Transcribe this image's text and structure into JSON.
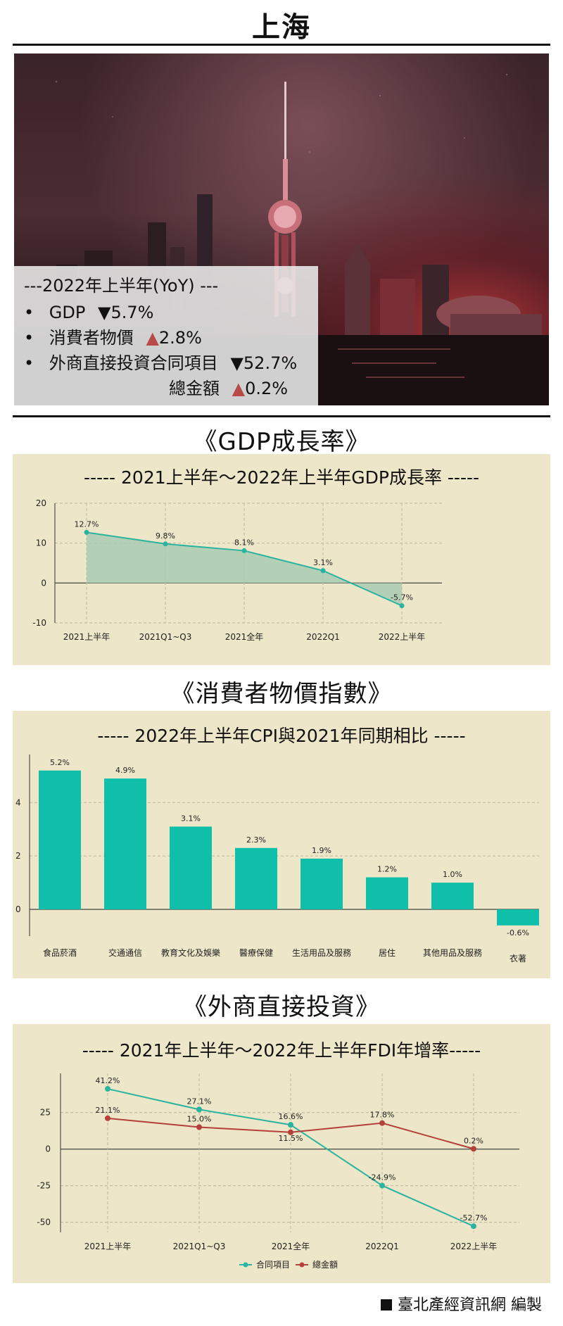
{
  "page": {
    "title": "上海",
    "credit": "臺北產經資訊網 編製"
  },
  "summary": {
    "heading": "---2022年上半年(YoY) ---",
    "items": [
      {
        "bullet": "•",
        "label": "GDP",
        "direction": "down",
        "arrow": "▼",
        "value": "5.7%"
      },
      {
        "bullet": "•",
        "label": "消費者物價",
        "direction": "up",
        "arrow": "▲",
        "value": "2.8%"
      },
      {
        "bullet": "•",
        "label": "外商直接投資合同項目",
        "direction": "down",
        "arrow": "▼",
        "value": "52.7%"
      },
      {
        "bullet": "",
        "label": "總金額",
        "direction": "up",
        "arrow": "▲",
        "value": "0.2%"
      }
    ]
  },
  "colors": {
    "panel_bg": "#ede6c8",
    "teal": "#2ab3a0",
    "teal_bar": "#0fbfa9",
    "red": "#b3403b",
    "up_arrow": "#b84a47",
    "gdp_fill": "#a8cbb3"
  },
  "sections": {
    "gdp": "《GDP成長率》",
    "cpi": "《消費者物價指數》",
    "fdi": "《外商直接投資》"
  },
  "chart_data": [
    {
      "type": "area",
      "title": "----- 2021上半年～2022年上半年GDP成長率 -----",
      "categories": [
        "2021上半年",
        "2021Q1~Q3",
        "2021全年",
        "2022Q1",
        "2022上半年"
      ],
      "values": [
        12.7,
        9.8,
        8.1,
        3.1,
        -5.7
      ],
      "data_labels": [
        "12.7%",
        "9.8%",
        "8.1%",
        "3.1%",
        "-5.7%"
      ],
      "ylim": [
        -10,
        20
      ],
      "yticks": [
        20,
        10,
        0,
        -10
      ],
      "grid": true
    },
    {
      "type": "bar",
      "title": "----- 2022年上半年CPI與2021年同期相比 -----",
      "categories": [
        "食品菸酒",
        "交通通信",
        "教育文化及娛樂",
        "醫療保健",
        "生活用品及服務",
        "居住",
        "其他用品及服務",
        "衣著"
      ],
      "values": [
        5.2,
        4.9,
        3.1,
        2.3,
        1.9,
        1.2,
        1.0,
        -0.6
      ],
      "data_labels": [
        "5.2%",
        "4.9%",
        "3.1%",
        "2.3%",
        "1.9%",
        "1.2%",
        "1.0%",
        "-0.6%"
      ],
      "ylim": [
        -1,
        5.8
      ],
      "yticks": [
        4,
        2,
        0
      ],
      "grid": true
    },
    {
      "type": "line",
      "title": "----- 2021年上半年～2022年上半年FDI年增率-----",
      "categories": [
        "2021上半年",
        "2021Q1~Q3",
        "2021全年",
        "2022Q1",
        "2022上半年"
      ],
      "series": [
        {
          "name": "合同項目",
          "values": [
            41.2,
            27.1,
            16.6,
            -24.9,
            -52.7
          ],
          "data_labels": [
            "41.2%",
            "27.1%",
            "16.6%",
            "-24.9%",
            "-52.7%"
          ]
        },
        {
          "name": "總金額",
          "values": [
            21.1,
            15.0,
            11.5,
            17.8,
            0.2
          ],
          "data_labels": [
            "21.1%",
            "15.0%",
            "11.5%",
            "17.8%",
            "0.2%"
          ]
        }
      ],
      "ylim": [
        -55,
        47
      ],
      "yticks": [
        25,
        0,
        -25,
        -50
      ],
      "legend": "bottom",
      "grid": true
    }
  ]
}
